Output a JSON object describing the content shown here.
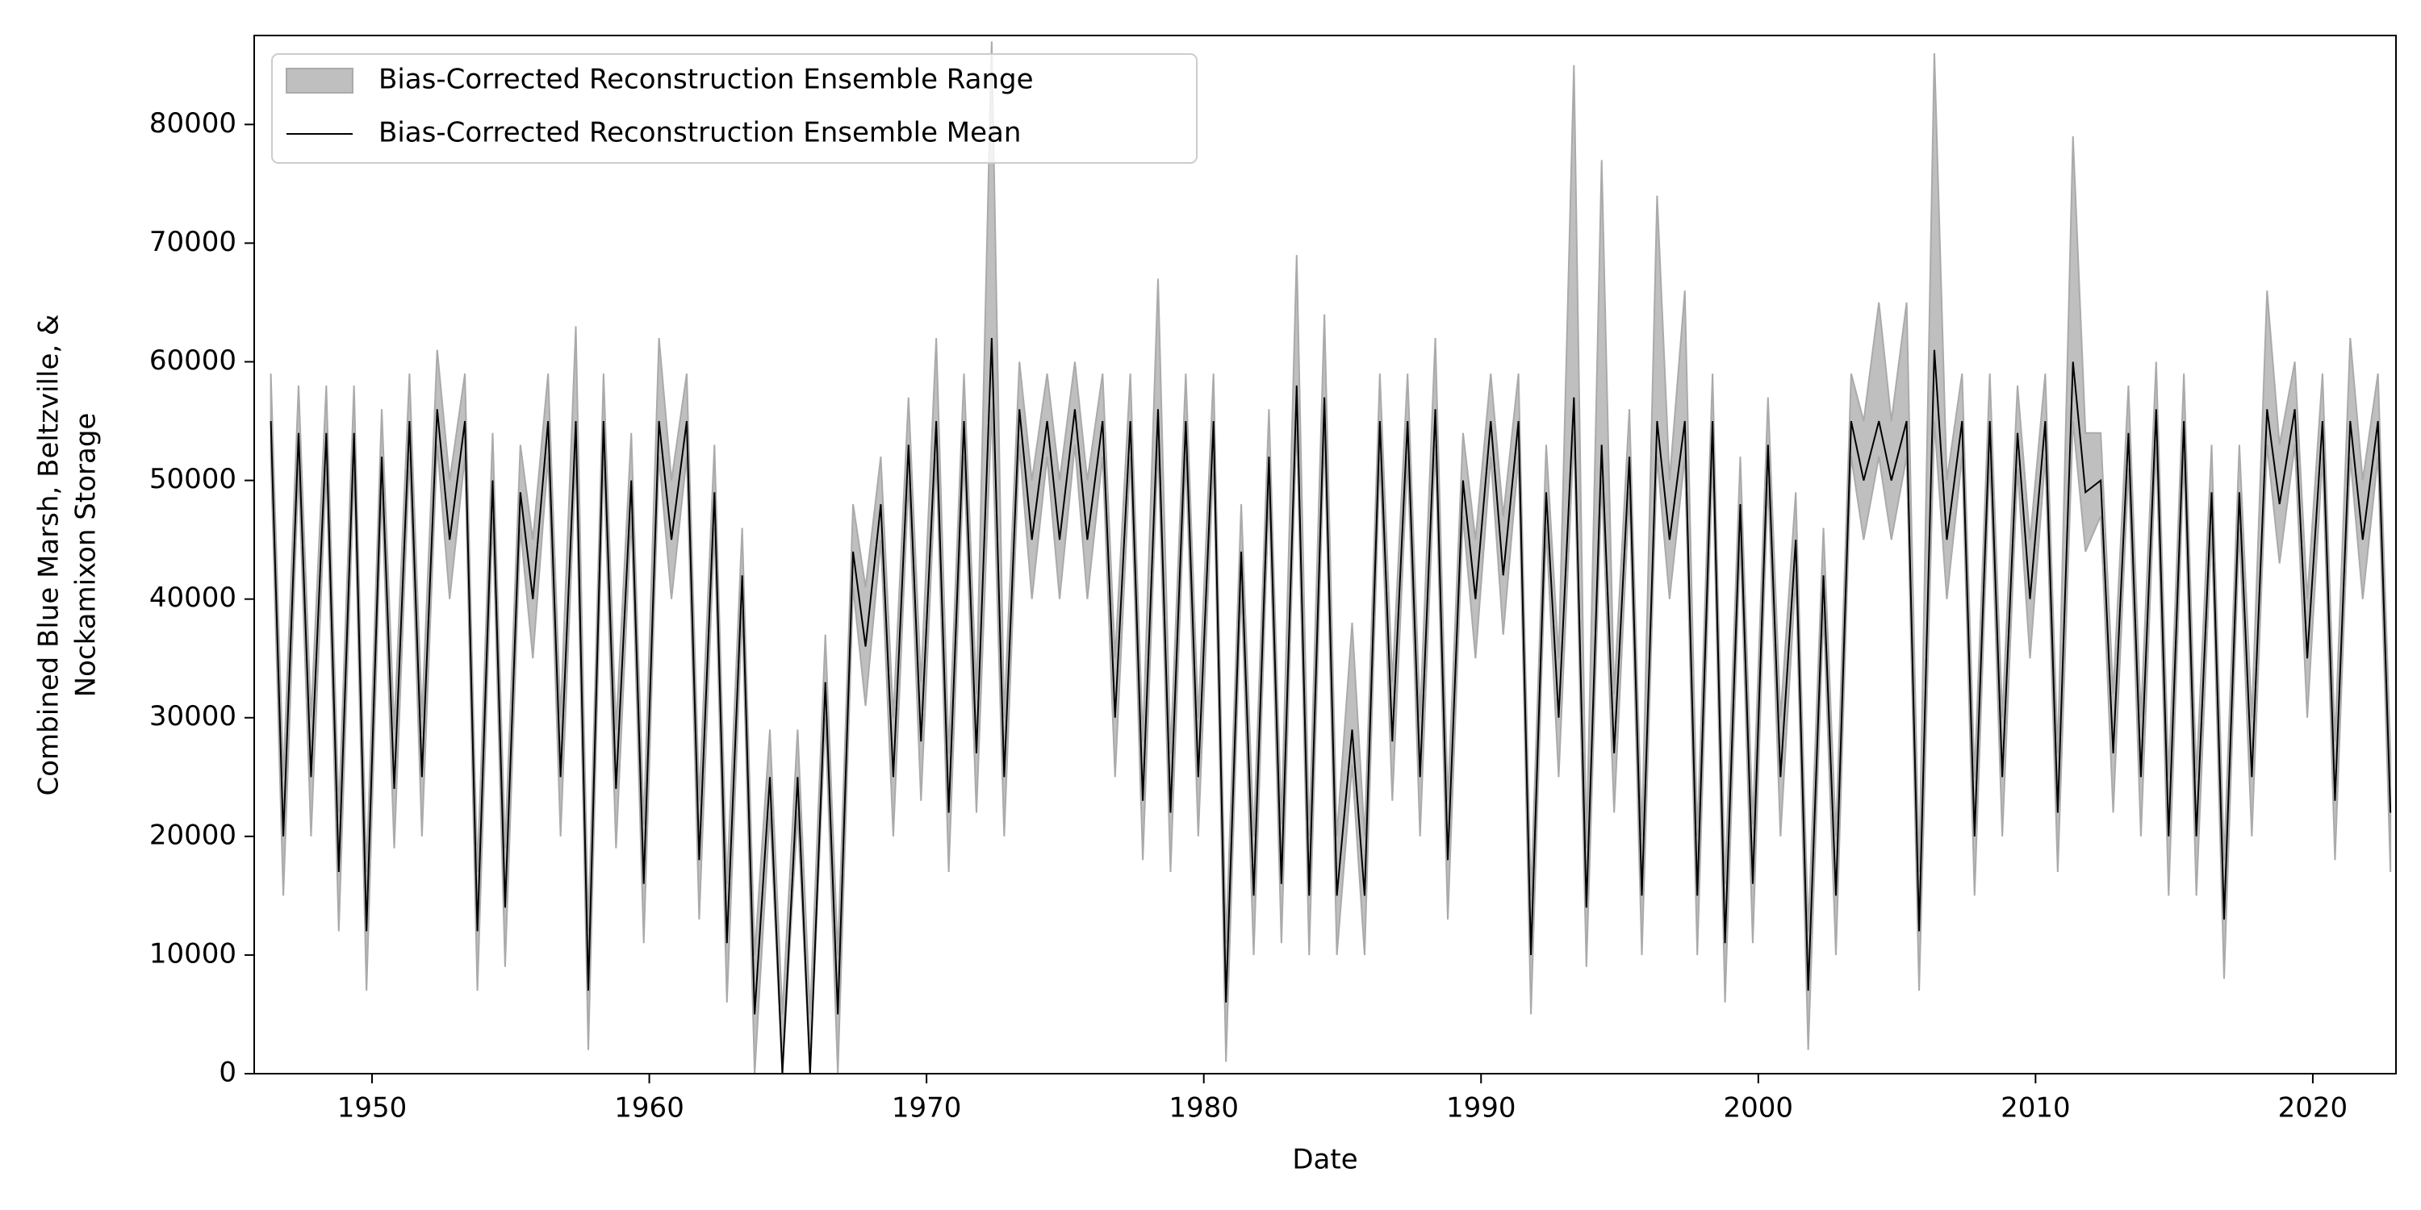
{
  "chart_data": {
    "type": "line",
    "x_label": "Date",
    "y_label": [
      "Combined Blue Marsh, Beltzville, &",
      "Nockamixon Storage"
    ],
    "legend": "upper left",
    "xlim": [
      1945.75,
      2023.0
    ],
    "xticks": [
      1950,
      1960,
      1970,
      1980,
      1990,
      2000,
      2010,
      2020
    ],
    "ylim": [
      0,
      87500
    ],
    "yticks": [
      0,
      10000,
      20000,
      30000,
      40000,
      50000,
      60000,
      70000,
      80000
    ],
    "x": [
      1946.35,
      1946.8,
      1947.35,
      1947.8,
      1948.35,
      1948.8,
      1949.35,
      1949.8,
      1950.35,
      1950.8,
      1951.35,
      1951.8,
      1952.35,
      1952.8,
      1953.35,
      1953.8,
      1954.35,
      1954.8,
      1955.35,
      1955.8,
      1956.35,
      1956.8,
      1957.35,
      1957.8,
      1958.35,
      1958.8,
      1959.35,
      1959.8,
      1960.35,
      1960.8,
      1961.35,
      1961.8,
      1962.35,
      1962.8,
      1963.35,
      1963.8,
      1964.35,
      1964.8,
      1965.35,
      1965.8,
      1966.35,
      1966.8,
      1967.35,
      1967.8,
      1968.35,
      1968.8,
      1969.35,
      1969.8,
      1970.35,
      1970.8,
      1971.35,
      1971.8,
      1972.35,
      1972.8,
      1973.35,
      1973.8,
      1974.35,
      1974.8,
      1975.35,
      1975.8,
      1976.35,
      1976.8,
      1977.35,
      1977.8,
      1978.35,
      1978.8,
      1979.35,
      1979.8,
      1980.35,
      1980.8,
      1981.35,
      1981.8,
      1982.35,
      1982.8,
      1983.35,
      1983.8,
      1984.35,
      1984.8,
      1985.35,
      1985.8,
      1986.35,
      1986.8,
      1987.35,
      1987.8,
      1988.35,
      1988.8,
      1989.35,
      1989.8,
      1990.35,
      1990.8,
      1991.35,
      1991.8,
      1992.35,
      1992.8,
      1993.35,
      1993.8,
      1994.35,
      1994.8,
      1995.35,
      1995.8,
      1996.35,
      1996.8,
      1997.35,
      1997.8,
      1998.35,
      1998.8,
      1999.35,
      1999.8,
      2000.35,
      2000.8,
      2001.35,
      2001.8,
      2002.35,
      2002.8,
      2003.35,
      2003.8,
      2004.35,
      2004.8,
      2005.35,
      2005.8,
      2006.35,
      2006.8,
      2007.35,
      2007.8,
      2008.35,
      2008.8,
      2009.35,
      2009.8,
      2010.35,
      2010.8,
      2011.35,
      2011.8,
      2012.35,
      2012.8,
      2013.35,
      2013.8,
      2014.35,
      2014.8,
      2015.35,
      2015.8,
      2016.35,
      2016.8,
      2017.35,
      2017.8,
      2018.35,
      2018.8,
      2019.35,
      2019.8,
      2020.35,
      2020.8,
      2021.35,
      2021.8,
      2022.35,
      2022.8
    ],
    "series": [
      {
        "name": "Bias-Corrected Reconstruction Ensemble Range",
        "color": "#aaaaaa",
        "upper": [
          59000,
          25000,
          58000,
          30000,
          58000,
          22000,
          58000,
          17000,
          56000,
          29000,
          59000,
          30000,
          61000,
          50000,
          59000,
          17000,
          54000,
          19000,
          53000,
          45000,
          59000,
          30000,
          63000,
          12000,
          59000,
          29000,
          54000,
          21000,
          62000,
          50000,
          59000,
          23000,
          53000,
          16000,
          46000,
          10000,
          29000,
          5000,
          29000,
          5000,
          37000,
          10000,
          48000,
          41000,
          52000,
          30000,
          57000,
          33000,
          62000,
          27000,
          59000,
          32000,
          87000,
          30000,
          60000,
          50000,
          59000,
          50000,
          60000,
          50000,
          59000,
          35000,
          59000,
          28000,
          67000,
          27000,
          59000,
          30000,
          59000,
          11000,
          48000,
          20000,
          56000,
          21000,
          69000,
          20000,
          64000,
          20000,
          38000,
          20000,
          59000,
          33000,
          59000,
          30000,
          62000,
          23000,
          54000,
          45000,
          59000,
          47000,
          59000,
          15000,
          53000,
          35000,
          85000,
          19000,
          77000,
          32000,
          56000,
          20000,
          74000,
          50000,
          66000,
          20000,
          59000,
          16000,
          52000,
          21000,
          57000,
          30000,
          49000,
          12000,
          46000,
          20000,
          59000,
          55000,
          65000,
          55000,
          65000,
          17000,
          86000,
          50000,
          59000,
          25000,
          59000,
          30000,
          58000,
          45000,
          59000,
          27000,
          79000,
          54000,
          54000,
          32000,
          58000,
          30000,
          60000,
          25000,
          59000,
          25000,
          53000,
          18000,
          53000,
          30000,
          66000,
          53000,
          60000,
          40000,
          59000,
          28000,
          62000,
          50000,
          59000,
          27000
        ],
        "lower": [
          52000,
          15000,
          51000,
          20000,
          51000,
          12000,
          51000,
          7000,
          49000,
          19000,
          52000,
          20000,
          53000,
          40000,
          52000,
          7000,
          47000,
          9000,
          46000,
          35000,
          52000,
          20000,
          52000,
          2000,
          52000,
          19000,
          47000,
          11000,
          52000,
          40000,
          52000,
          13000,
          46000,
          6000,
          39000,
          0,
          22000,
          0,
          22000,
          0,
          30000,
          0,
          41000,
          31000,
          45000,
          20000,
          50000,
          23000,
          52000,
          17000,
          52000,
          22000,
          56000,
          20000,
          53000,
          40000,
          52000,
          40000,
          53000,
          40000,
          52000,
          25000,
          52000,
          18000,
          53000,
          17000,
          52000,
          20000,
          52000,
          1000,
          41000,
          10000,
          49000,
          11000,
          55000,
          10000,
          54000,
          10000,
          26000,
          10000,
          52000,
          23000,
          52000,
          20000,
          53000,
          13000,
          47000,
          35000,
          52000,
          37000,
          52000,
          5000,
          46000,
          25000,
          54000,
          9000,
          50000,
          22000,
          49000,
          10000,
          52000,
          40000,
          52000,
          10000,
          52000,
          6000,
          45000,
          11000,
          50000,
          20000,
          42000,
          2000,
          39000,
          10000,
          52000,
          45000,
          52000,
          45000,
          52000,
          7000,
          55000,
          40000,
          52000,
          15000,
          52000,
          20000,
          51000,
          35000,
          52000,
          17000,
          55000,
          44000,
          47000,
          22000,
          51000,
          20000,
          53000,
          15000,
          52000,
          15000,
          46000,
          8000,
          46000,
          20000,
          53000,
          43000,
          53000,
          30000,
          52000,
          18000,
          52000,
          40000,
          52000,
          17000
        ]
      },
      {
        "name": "Bias-Corrected Reconstruction Ensemble Mean",
        "color": "#000000",
        "values": [
          55000,
          20000,
          54000,
          25000,
          54000,
          17000,
          54000,
          12000,
          52000,
          24000,
          55000,
          25000,
          56000,
          45000,
          55000,
          12000,
          50000,
          14000,
          49000,
          40000,
          55000,
          25000,
          55000,
          7000,
          55000,
          24000,
          50000,
          16000,
          55000,
          45000,
          55000,
          18000,
          49000,
          11000,
          42000,
          5000,
          25000,
          0,
          25000,
          0,
          33000,
          5000,
          44000,
          36000,
          48000,
          25000,
          53000,
          28000,
          55000,
          22000,
          55000,
          27000,
          62000,
          25000,
          56000,
          45000,
          55000,
          45000,
          56000,
          45000,
          55000,
          30000,
          55000,
          23000,
          56000,
          22000,
          55000,
          25000,
          55000,
          6000,
          44000,
          15000,
          52000,
          16000,
          58000,
          15000,
          57000,
          15000,
          29000,
          15000,
          55000,
          28000,
          55000,
          25000,
          56000,
          18000,
          50000,
          40000,
          55000,
          42000,
          55000,
          10000,
          49000,
          30000,
          57000,
          14000,
          53000,
          27000,
          52000,
          15000,
          55000,
          45000,
          55000,
          15000,
          55000,
          11000,
          48000,
          16000,
          53000,
          25000,
          45000,
          7000,
          42000,
          15000,
          55000,
          50000,
          55000,
          50000,
          55000,
          12000,
          61000,
          45000,
          55000,
          20000,
          55000,
          25000,
          54000,
          40000,
          55000,
          22000,
          60000,
          49000,
          50000,
          27000,
          54000,
          25000,
          56000,
          20000,
          55000,
          20000,
          49000,
          13000,
          49000,
          25000,
          56000,
          48000,
          56000,
          35000,
          55000,
          23000,
          55000,
          45000,
          55000,
          22000
        ]
      }
    ]
  }
}
